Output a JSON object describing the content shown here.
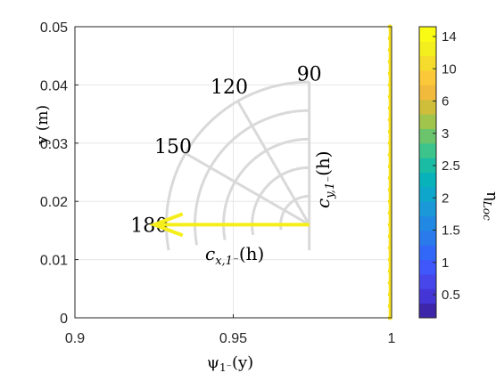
{
  "chart_data": {
    "type": "scatter",
    "title": "",
    "xlabel": "ψ",
    "xlabel_sub": "1⁻",
    "xlabel_arg": "(y)",
    "ylabel": "y (m)",
    "xlim": [
      0.9,
      1.0
    ],
    "ylim": [
      0,
      0.05
    ],
    "xticks": [
      0.9,
      0.95,
      1.0
    ],
    "xtick_labels": [
      "0.9",
      "0.95",
      "1"
    ],
    "yticks": [
      0,
      0.01,
      0.02,
      0.03,
      0.04,
      0.05
    ],
    "ytick_labels": [
      "0",
      "0.01",
      "0.02",
      "0.03",
      "0.04",
      "0.05"
    ],
    "grid": true,
    "series": [
      {
        "x": [
          0.9995,
          0.9995,
          0.9995,
          0.9995,
          0.9995,
          0.9995,
          0.9995,
          0.9995,
          0.9995,
          0.9995,
          0.9995,
          0.9995,
          0.9995,
          0.9995,
          0.9995,
          0.9995,
          0.9995,
          0.9995,
          0.9995,
          0.9995,
          0.9995,
          0.9995,
          0.9995,
          0.9995,
          0.9995,
          0.9995
        ],
        "y": [
          0.0,
          0.002,
          0.004,
          0.006,
          0.008,
          0.01,
          0.012,
          0.014,
          0.016,
          0.018,
          0.02,
          0.022,
          0.024,
          0.026,
          0.028,
          0.03,
          0.032,
          0.034,
          0.036,
          0.038,
          0.04,
          0.042,
          0.044,
          0.046,
          0.048,
          0.05
        ],
        "color": "#f7e11d"
      }
    ],
    "polar_glyph": {
      "center": [
        0.974,
        0.016
      ],
      "radius_y": 0.0245,
      "angle_labels": [
        "90",
        "120",
        "150",
        "180"
      ],
      "grid_color": "#d9d9d9",
      "arrow_color": "#f5ee1a",
      "arrow_tip": [
        0.925,
        0.016
      ]
    },
    "annotations": {
      "cx_main": "c",
      "cx_sub": "x,1⁻",
      "cx_arg": "(h)",
      "cy_main": "c",
      "cy_sub": "y,1⁻",
      "cy_arg": "(h)"
    },
    "colorbar": {
      "label_main": "η",
      "label_sub": "Loc",
      "ticks": [
        "0.5",
        "1",
        "1.5",
        "2",
        "2.5",
        "3",
        "6",
        "10",
        "14"
      ],
      "colors": [
        "#3e26a8",
        "#4435d6",
        "#4746eb",
        "#3f57fb",
        "#3168f8",
        "#2a7aeb",
        "#2189e3",
        "#1b98d8",
        "#0fa6cc",
        "#07b2ba",
        "#1bbca4",
        "#3cc48c",
        "#6bc46c",
        "#a0c44c",
        "#cfbe3a",
        "#f1ba3c",
        "#fbc83a",
        "#f5db2b",
        "#f3ee1e",
        "#f9fb15"
      ]
    }
  }
}
